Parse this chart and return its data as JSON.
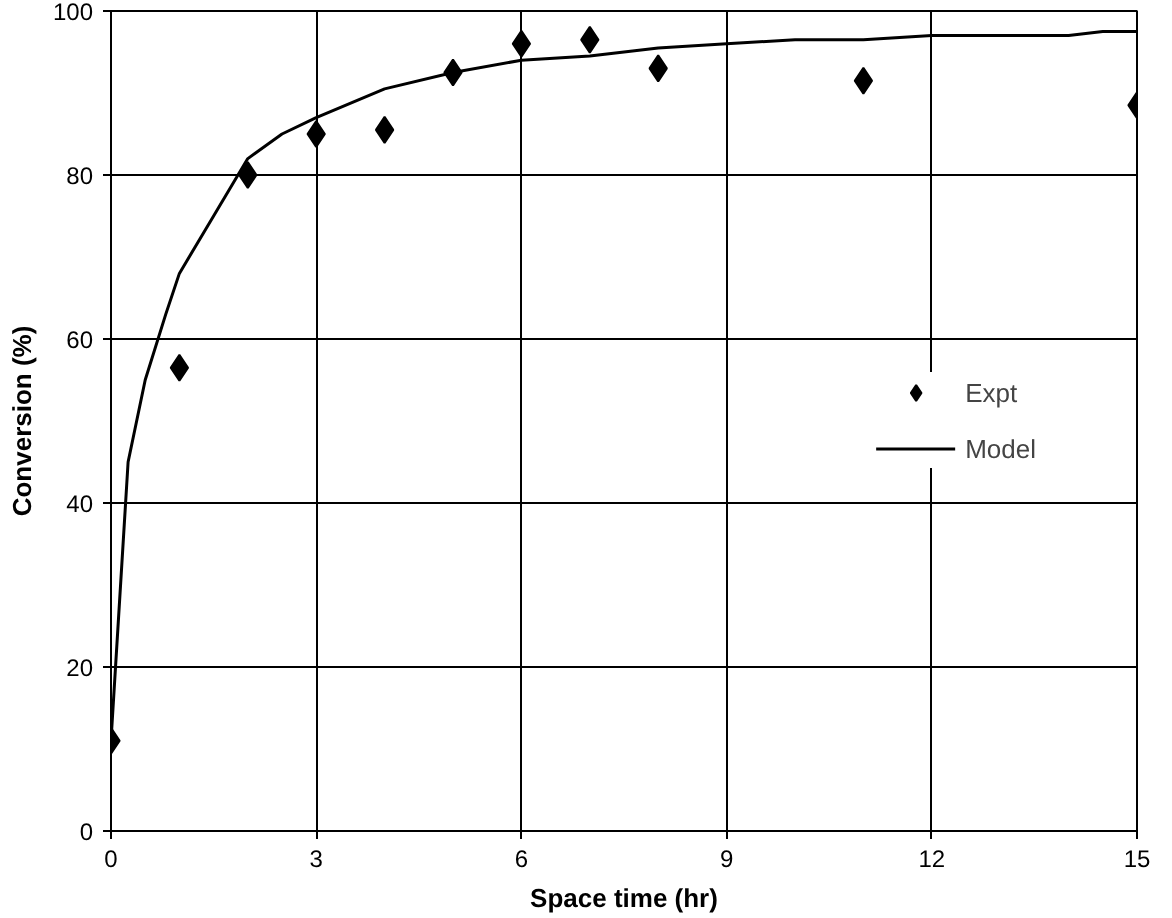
{
  "chart_data": {
    "type": "scatter",
    "xlabel": "Space time (hr)",
    "ylabel": "Conversion (%)",
    "xlim": [
      0,
      15
    ],
    "ylim": [
      0,
      100
    ],
    "xticks": [
      0,
      3,
      6,
      9,
      12,
      15
    ],
    "yticks": [
      0,
      20,
      40,
      60,
      80,
      100
    ],
    "grid": true,
    "legend": "right",
    "series": [
      {
        "name": "Expt",
        "marker": "diamond",
        "color": "#000000",
        "x": [
          0,
          1,
          2,
          3,
          4,
          5,
          6,
          7,
          8,
          11,
          15
        ],
        "values": [
          11,
          56.5,
          80,
          85,
          85.5,
          92.5,
          96,
          96.5,
          93,
          91.5,
          88.5
        ]
      },
      {
        "name": "Model",
        "type": "line",
        "line_style": "solid",
        "color": "#000000",
        "x": [
          0,
          0.25,
          0.5,
          0.8,
          1,
          1.5,
          2,
          2.5,
          3,
          4,
          5,
          6,
          7,
          8,
          9,
          10,
          11,
          12,
          13,
          14,
          14.5,
          15
        ],
        "values": [
          11,
          45,
          55,
          63,
          68,
          75,
          82,
          85,
          87,
          90.5,
          92.5,
          94,
          94.5,
          95.5,
          96,
          96.5,
          96.5,
          97,
          97,
          97,
          97.5,
          97.5
        ]
      }
    ]
  }
}
